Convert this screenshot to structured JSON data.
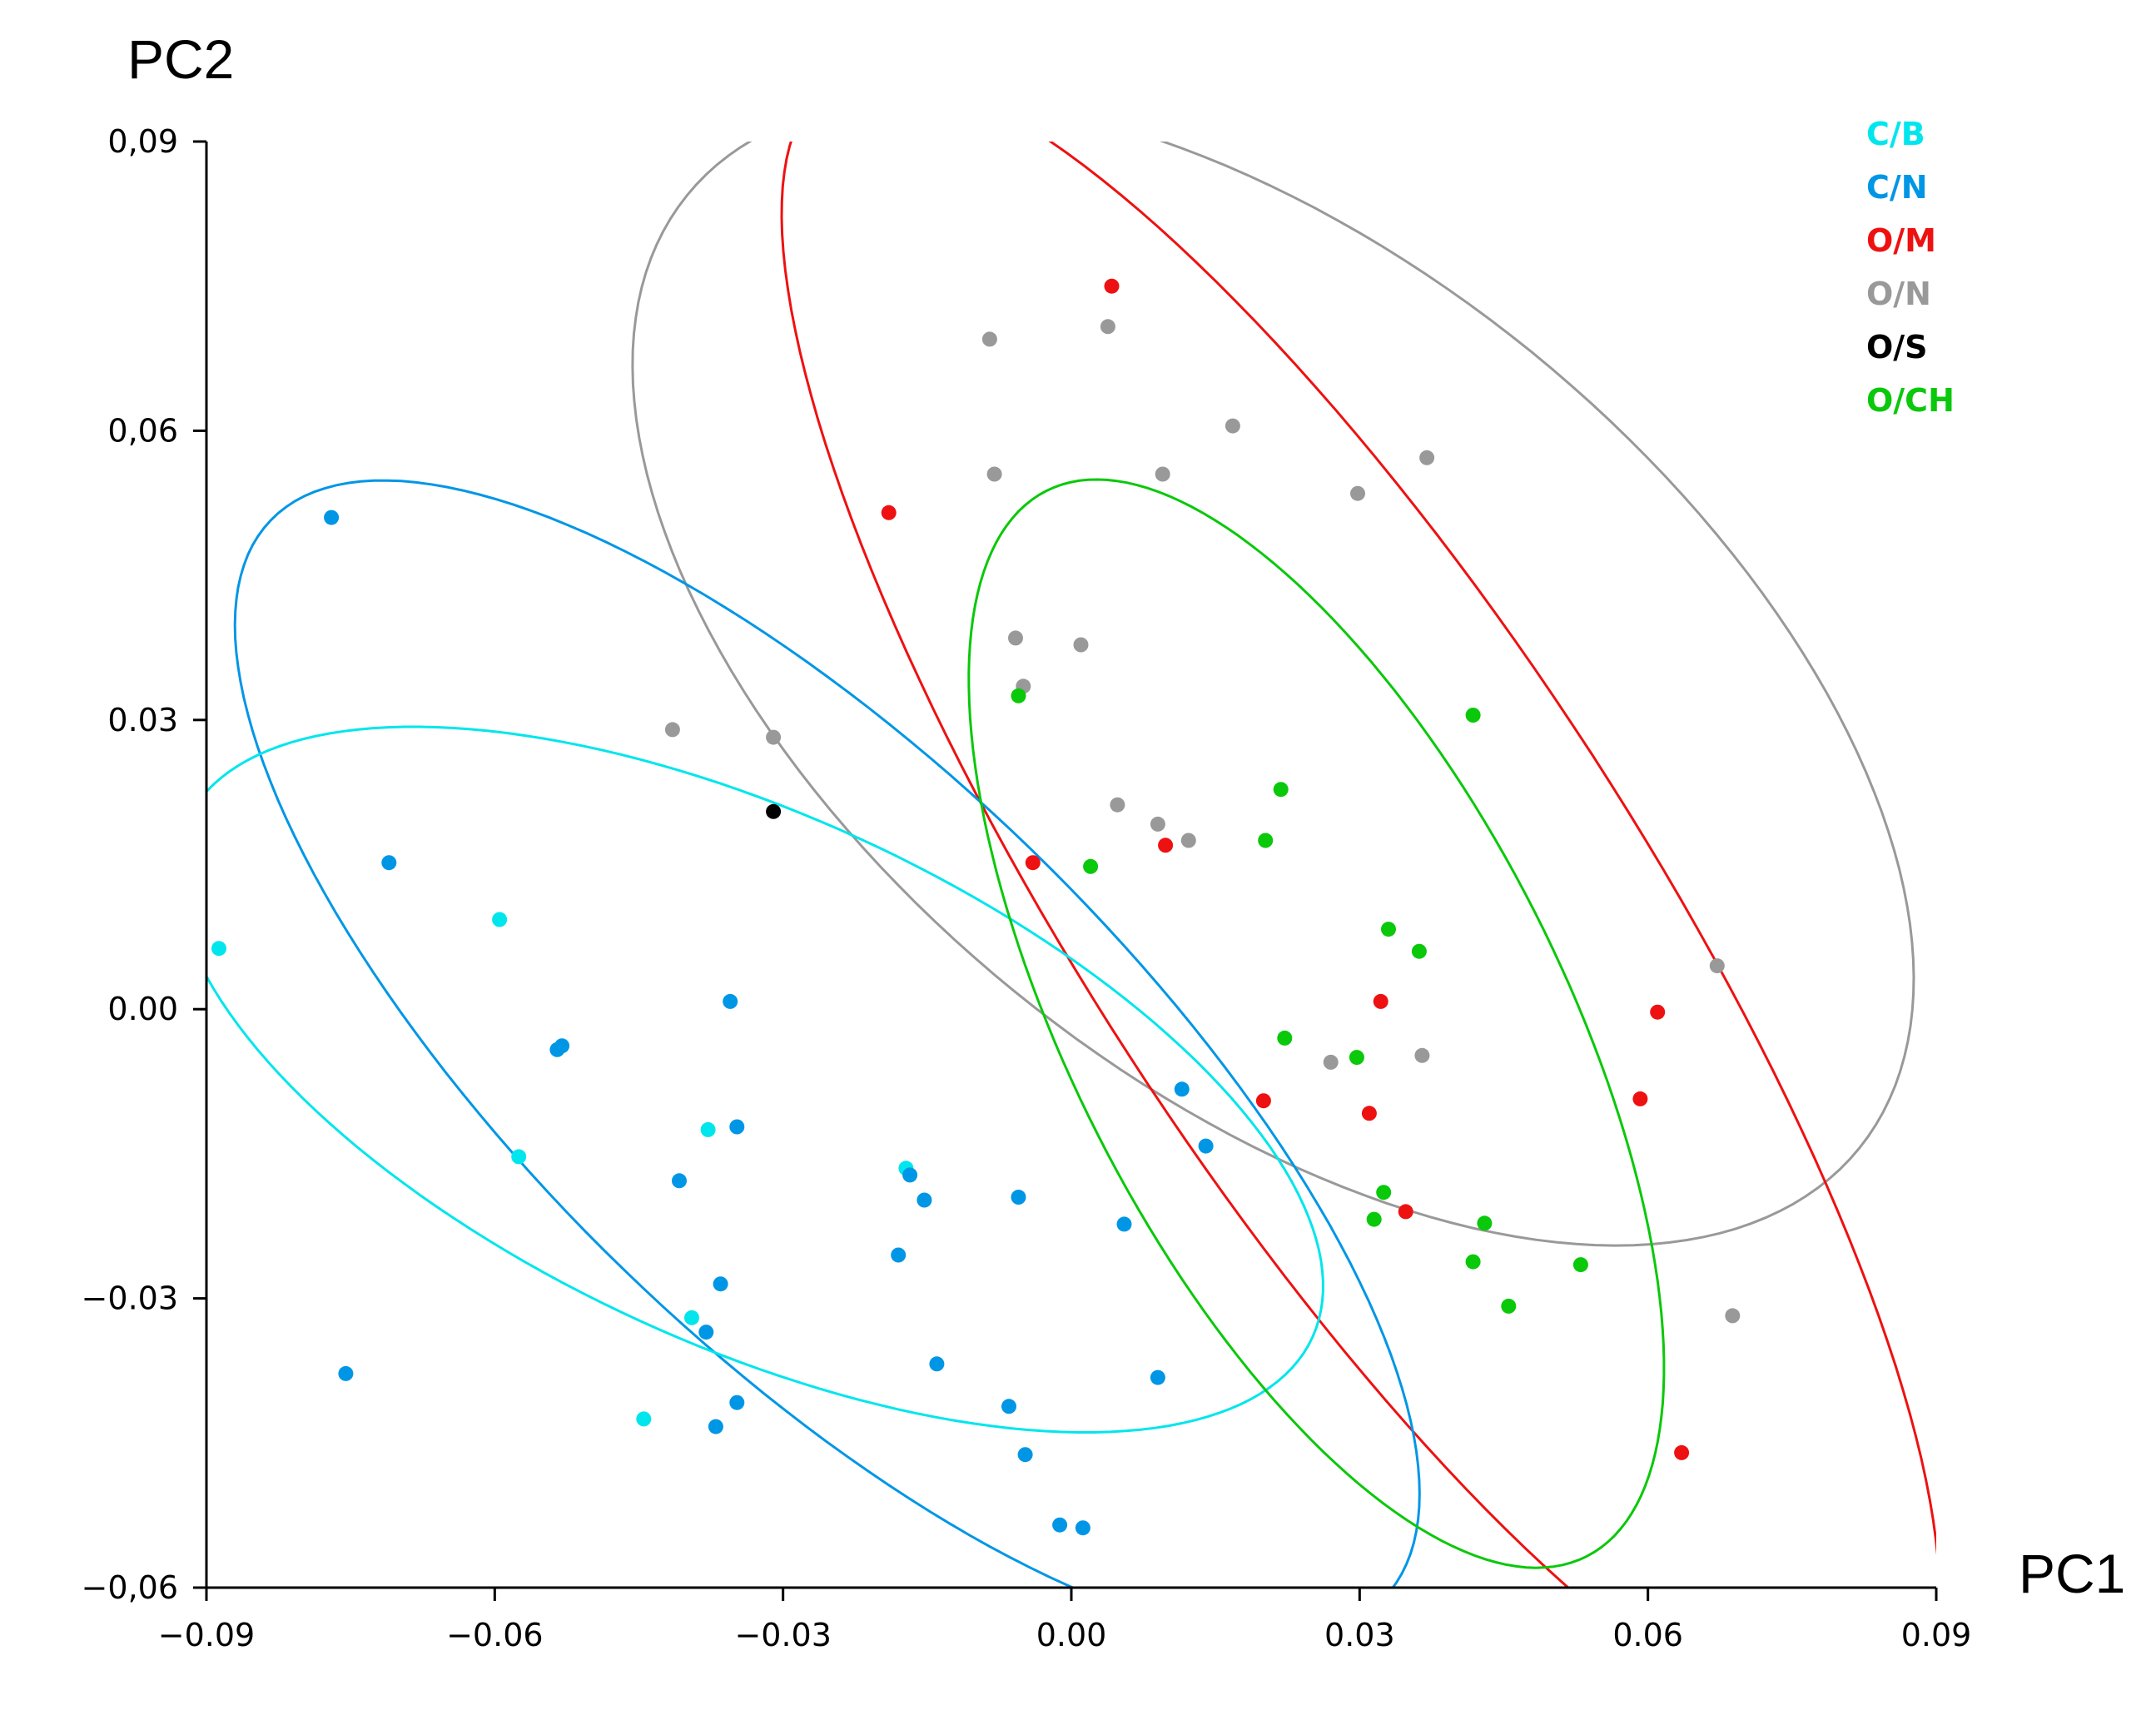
{
  "chart_data": {
    "type": "scatter",
    "title": "",
    "xlabel": "PC1",
    "ylabel": "PC2",
    "xlim": [
      -0.09,
      0.09
    ],
    "ylim": [
      -0.06,
      0.09
    ],
    "grid": false,
    "legend_position": "top-right",
    "xticks": [
      -0.09,
      -0.06,
      -0.03,
      0.0,
      0.03,
      0.06,
      0.09
    ],
    "yticks": [
      -0.06,
      -0.03,
      0.0,
      0.03,
      0.06,
      0.09
    ],
    "xtick_labels": [
      "−0.09",
      "−0.06",
      "−0.03",
      "0.00",
      "0.03",
      "0.06",
      "0.09"
    ],
    "ytick_labels": [
      "−0,06",
      "−0.03",
      "0.00",
      "0.03",
      "0,06",
      "0,09"
    ],
    "series": [
      {
        "name": "C/B",
        "color": "#00e6ec",
        "points": [
          [
            -0.0887,
            0.0063
          ],
          [
            -0.0595,
            0.0093
          ],
          [
            -0.0575,
            -0.0153
          ],
          [
            -0.0378,
            -0.0125
          ],
          [
            -0.0395,
            -0.032
          ],
          [
            -0.0445,
            -0.0425
          ],
          [
            -0.0172,
            -0.0165
          ]
        ],
        "ellipse": {
          "cx": -0.0335,
          "cy": -0.0073,
          "rx": 0.0644,
          "ry": 0.0275,
          "angle_deg": -24.5
        }
      },
      {
        "name": "C/N",
        "color": "#0096e6",
        "points": [
          [
            -0.077,
            0.051
          ],
          [
            -0.071,
            0.0152
          ],
          [
            -0.0755,
            -0.0378
          ],
          [
            -0.0535,
            -0.0042
          ],
          [
            -0.053,
            -0.0038
          ],
          [
            -0.0355,
            0.0008
          ],
          [
            -0.0348,
            -0.0122
          ],
          [
            -0.0408,
            -0.0178
          ],
          [
            -0.038,
            -0.0335
          ],
          [
            -0.0365,
            -0.0285
          ],
          [
            -0.037,
            -0.0433
          ],
          [
            -0.0348,
            -0.0408
          ],
          [
            -0.0168,
            -0.0172
          ],
          [
            -0.0153,
            -0.0198
          ],
          [
            -0.018,
            -0.0255
          ],
          [
            -0.014,
            -0.0368
          ],
          [
            -0.0055,
            -0.0195
          ],
          [
            -0.0065,
            -0.0412
          ],
          [
            -0.0048,
            -0.0462
          ],
          [
            -0.0012,
            -0.0535
          ],
          [
            0.0012,
            -0.0538
          ],
          [
            0.0055,
            -0.0223
          ],
          [
            0.0115,
            -0.0083
          ],
          [
            0.014,
            -0.0142
          ],
          [
            0.009,
            -0.0382
          ]
        ],
        "ellipse": {
          "cx": -0.0254,
          "cy": -0.0052,
          "rx": 0.0805,
          "ry": 0.0304,
          "angle_deg": -44.0
        }
      },
      {
        "name": "O/M",
        "color": "#ee1111",
        "points": [
          [
            0.0042,
            0.075
          ],
          [
            -0.019,
            0.0515
          ],
          [
            -0.004,
            0.0152
          ],
          [
            0.0098,
            0.017
          ],
          [
            0.0322,
            0.0008
          ],
          [
            0.02,
            -0.0095
          ],
          [
            0.031,
            -0.0108
          ],
          [
            0.0348,
            -0.021
          ],
          [
            0.061,
            -0.0003
          ],
          [
            0.0592,
            -0.0093
          ],
          [
            0.0635,
            -0.046
          ]
        ],
        "ellipse": {
          "cx": 0.0301,
          "cy": 0.0108,
          "rx": 0.1014,
          "ry": 0.0287,
          "angle_deg": -57.0
        }
      },
      {
        "name": "O/N",
        "color": "#999999",
        "points": [
          [
            -0.0085,
            0.0695
          ],
          [
            0.0038,
            0.0708
          ],
          [
            -0.008,
            0.0555
          ],
          [
            0.0095,
            0.0555
          ],
          [
            0.0168,
            0.0605
          ],
          [
            0.0298,
            0.0535
          ],
          [
            0.037,
            0.0572
          ],
          [
            -0.0058,
            0.0385
          ],
          [
            0.001,
            0.0378
          ],
          [
            -0.005,
            0.0335
          ],
          [
            -0.0415,
            0.029
          ],
          [
            -0.031,
            0.0282
          ],
          [
            0.0048,
            0.0212
          ],
          [
            0.009,
            0.0192
          ],
          [
            0.0122,
            0.0175
          ],
          [
            0.027,
            -0.0055
          ],
          [
            0.0365,
            -0.0048
          ],
          [
            0.0672,
            0.0045
          ],
          [
            0.0688,
            -0.0318
          ]
        ],
        "ellipse": {
          "cx": 0.021,
          "cy": 0.035,
          "rx": 0.0785,
          "ry": 0.0427,
          "angle_deg": -39.0
        }
      },
      {
        "name": "O/S",
        "color": "#000000",
        "points": [
          [
            -0.031,
            0.0205
          ]
        ]
      },
      {
        "name": "O/CH",
        "color": "#0ac80a",
        "points": [
          [
            -0.0055,
            0.0325
          ],
          [
            0.0418,
            0.0305
          ],
          [
            0.002,
            0.0148
          ],
          [
            0.0218,
            0.0228
          ],
          [
            0.0202,
            0.0175
          ],
          [
            0.033,
            0.0083
          ],
          [
            0.0362,
            0.006
          ],
          [
            0.0222,
            -0.003
          ],
          [
            0.0297,
            -0.005
          ],
          [
            0.0325,
            -0.019
          ],
          [
            0.0315,
            -0.0218
          ],
          [
            0.043,
            -0.0222
          ],
          [
            0.0418,
            -0.0262
          ],
          [
            0.053,
            -0.0265
          ],
          [
            0.0455,
            -0.0308
          ]
        ],
        "ellipse": {
          "cx": 0.0255,
          "cy": -0.0015,
          "rx": 0.062,
          "ry": 0.0255,
          "angle_deg": -63.0
        }
      }
    ],
    "ellipse_order": [
      "O/N",
      "O/M",
      "C/N",
      "C/B",
      "O/CH"
    ]
  }
}
